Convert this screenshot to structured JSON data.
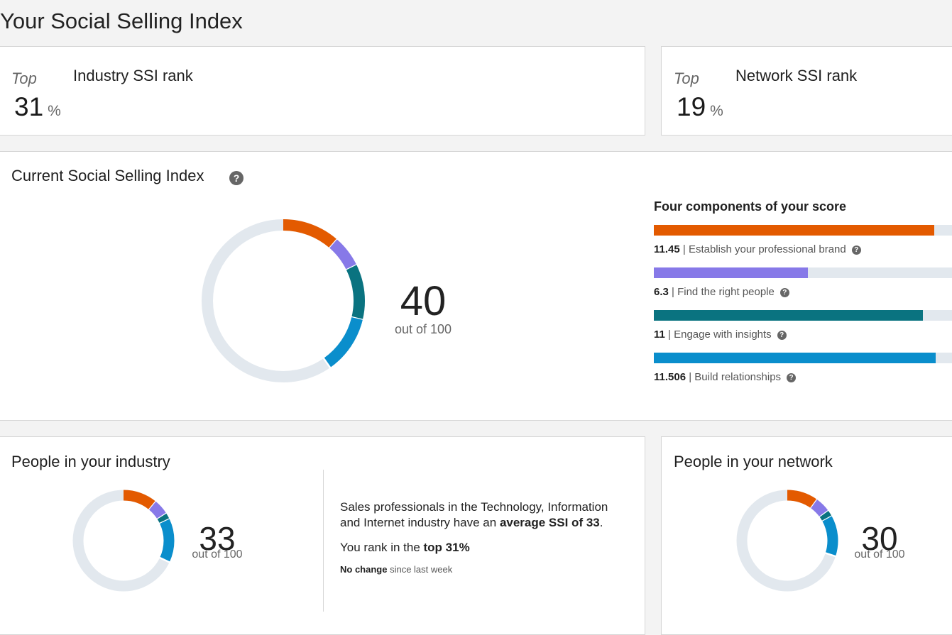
{
  "page": {
    "title": "Your Social Selling Index"
  },
  "industry_rank": {
    "top_label": "Top",
    "value": "31",
    "unit": "%",
    "title": "Industry SSI rank"
  },
  "network_rank": {
    "top_label": "Top",
    "value": "19",
    "unit": "%",
    "title": "Network SSI rank"
  },
  "current": {
    "title": "Current Social Selling Index",
    "help_glyph": "?",
    "score": "40",
    "out_of": "out of 100"
  },
  "components": {
    "title": "Four components of your score",
    "items": [
      {
        "value": "11.45",
        "label": "Establish your professional brand",
        "fraction": 0.916,
        "color": "#e35a00"
      },
      {
        "value": "6.3",
        "label": "Find the right people",
        "fraction": 0.504,
        "color": "#8779e8"
      },
      {
        "value": "11",
        "label": "Engage with insights",
        "fraction": 0.88,
        "color": "#0a7380"
      },
      {
        "value": "11.506",
        "label": "Build relationships",
        "fraction": 0.92,
        "color": "#0a8ecc"
      }
    ],
    "separator": "|"
  },
  "industry": {
    "title": "People in your industry",
    "score": "33",
    "out_of": "out of 100",
    "desc1_a": "Sales professionals in the Technology, Information",
    "desc1_b": "and Internet industry have an ",
    "desc1_bold": "average SSI of 33",
    "desc1_end": ".",
    "rank_text": "You rank in the ",
    "rank_bold": "top 31%",
    "change_bold": "No change",
    "change_text": " since last week",
    "ring": [
      11.0,
      5.0,
      2.0,
      14.0
    ]
  },
  "network": {
    "title": "People in your network",
    "score": "30",
    "out_of": "out of 100",
    "ring": [
      10.0,
      5.0,
      2.0,
      13.0
    ]
  },
  "ring_colors": [
    "#e35a00",
    "#8779e8",
    "#0a7380",
    "#0a8ecc"
  ],
  "ring_track": "#e2e8ee"
}
